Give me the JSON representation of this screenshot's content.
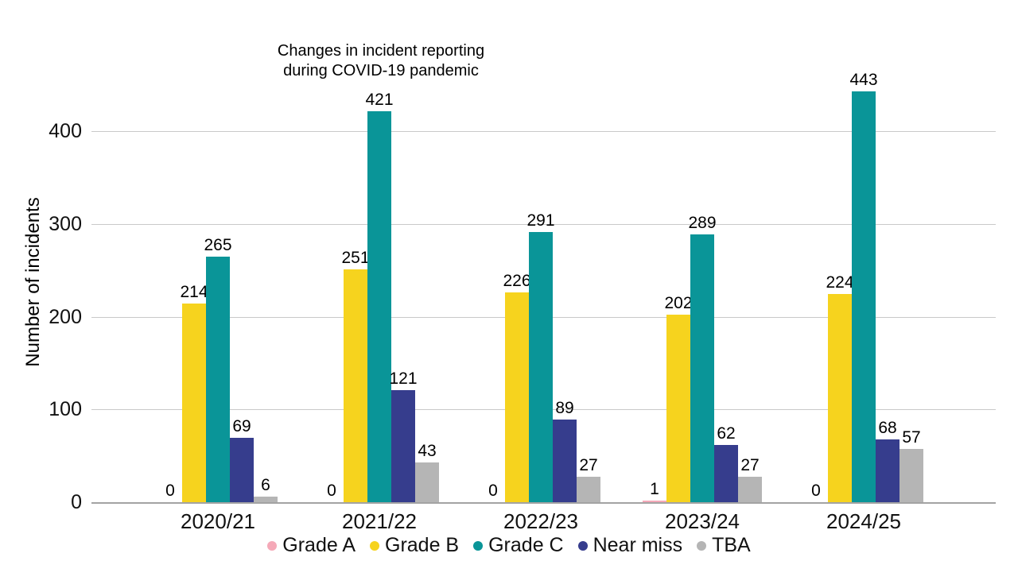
{
  "chart_data": {
    "type": "bar",
    "title": "Changes in incident reporting during COVID-19 pandemic",
    "title_lines": [
      "Changes in incident reporting",
      "during COVID-19 pandemic"
    ],
    "ylabel": "Number of incidents",
    "categories": [
      "2020/21",
      "2021/22",
      "2022/23",
      "2023/24",
      "2024/25"
    ],
    "series": [
      {
        "name": "Grade A",
        "color": "#f5a9b8",
        "values": [
          0,
          0,
          0,
          1,
          0
        ]
      },
      {
        "name": "Grade B",
        "color": "#f6d31e",
        "values": [
          214,
          251,
          226,
          202,
          224
        ]
      },
      {
        "name": "Grade C",
        "color": "#0a9598",
        "values": [
          265,
          421,
          291,
          289,
          443
        ]
      },
      {
        "name": "Near miss",
        "color": "#363d8d",
        "values": [
          69,
          121,
          89,
          62,
          68
        ]
      },
      {
        "name": "TBA",
        "color": "#b5b5b5",
        "values": [
          6,
          43,
          27,
          27,
          57
        ]
      }
    ],
    "yticks": [
      0,
      100,
      200,
      300,
      400
    ],
    "ylim": [
      0,
      470
    ],
    "grid": true,
    "value_labels": true,
    "legend_position": "bottom"
  },
  "colors": {
    "gridline": "#c9c9c9",
    "axis_line": "#a3a3a3",
    "text": "#111111"
  }
}
